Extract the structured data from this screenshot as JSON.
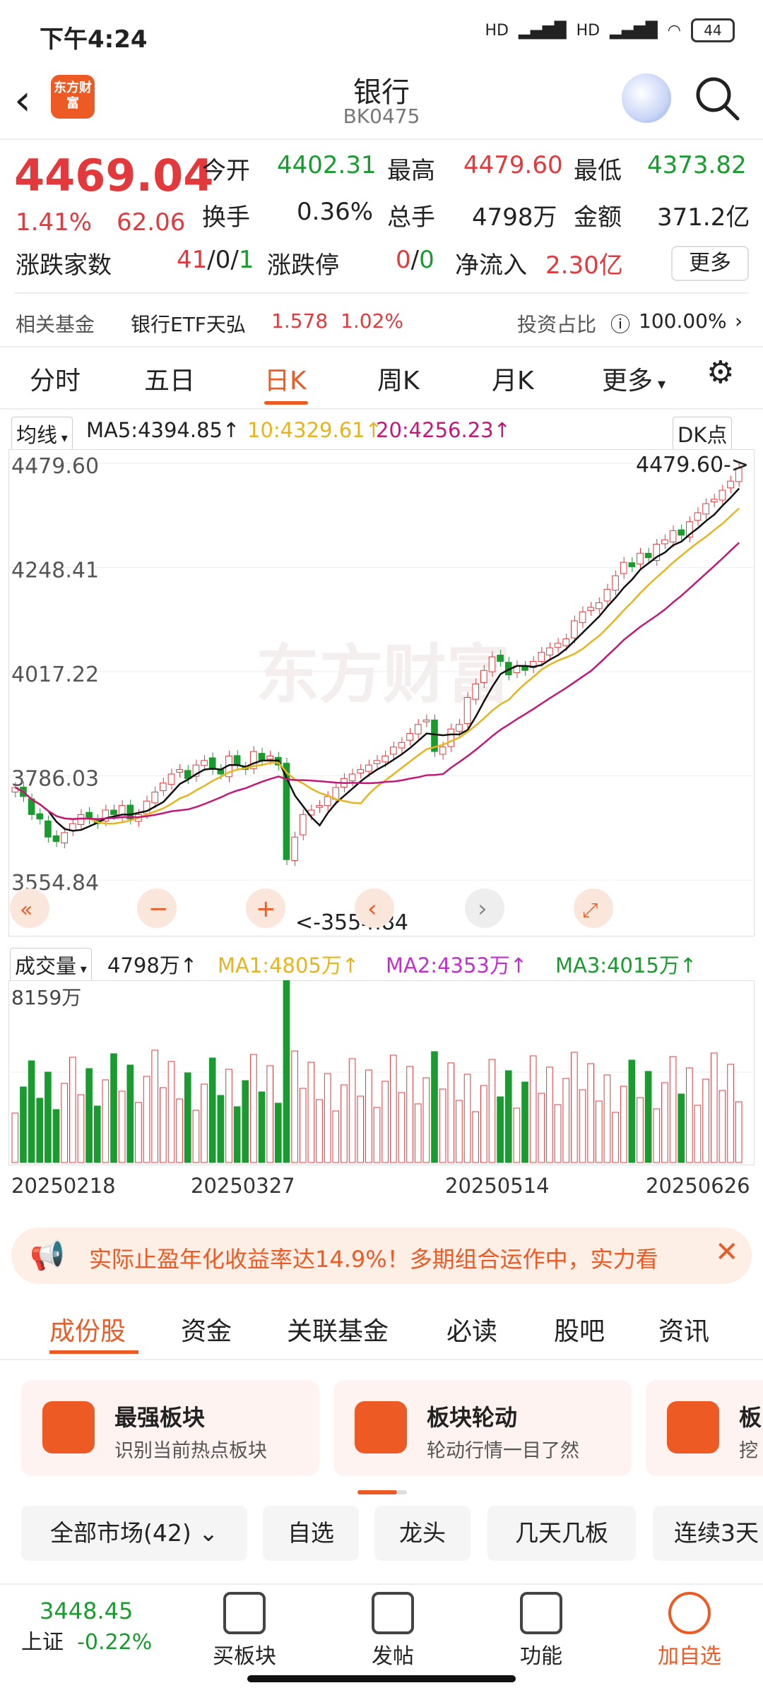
{
  "status": {
    "time": "下午4:24",
    "battery": "44",
    "net1": "HD",
    "net2": "HD"
  },
  "nav": {
    "title": "银行",
    "code": "BK0475",
    "logo": "东方财富"
  },
  "quote": {
    "price": "4469.04",
    "pct": "1.41%",
    "change": "62.06",
    "open_label": "今开",
    "open": "4402.31",
    "high_label": "最高",
    "high": "4479.60",
    "low_label": "最低",
    "low": "4373.82",
    "turnover_label": "换手",
    "turnover": "0.36%",
    "volume_label": "总手",
    "volume": "4798万",
    "amount_label": "金额",
    "amount": "371.2亿",
    "updown_label": "涨跌家数",
    "up": "41",
    "flat": "0",
    "down": "1",
    "limit_label": "涨跌停",
    "limit_up": "0",
    "limit_down": "0",
    "inflow_label": "净流入",
    "inflow": "2.30亿",
    "more": "更多"
  },
  "fund": {
    "label": "相关基金",
    "name": "银行ETF天弘",
    "nav": "1.578",
    "pct": "1.02%",
    "ratio_label": "投资占比",
    "ratio": "100.00%"
  },
  "tabs": [
    "分时",
    "五日",
    "日K",
    "周K",
    "月K",
    "更多"
  ],
  "ma": {
    "select": "均线",
    "ma5": "MA5:4394.85",
    "ma10": "10:4329.61",
    "ma20": "20:4256.23",
    "dk": "DK点"
  },
  "vol": {
    "select": "成交量",
    "value": "4798万",
    "ma1": "MA1:4805万",
    "ma2": "MA2:4353万",
    "ma3": "MA3:4015万",
    "max": "8159万"
  },
  "dates": [
    "20250218",
    "20250327",
    "20250514",
    "20250626"
  ],
  "banner": "实际止盈年化收益率达14.9%！多期组合运作中，实力看",
  "subtabs": [
    "成份股",
    "资金",
    "关联基金",
    "必读",
    "股吧",
    "资讯"
  ],
  "cards": [
    {
      "title": "最强板块",
      "sub": "识别当前热点板块"
    },
    {
      "title": "板块轮动",
      "sub": "轮动行情一目了然"
    },
    {
      "title": "板",
      "sub": "挖"
    }
  ],
  "filters": [
    "全部市场(42)",
    "自选",
    "龙头",
    "几天几板",
    "连续3天"
  ],
  "bottom": {
    "index_value": "3448.45",
    "index_name": "上证",
    "index_pct": "-0.22%",
    "items": [
      "买板块",
      "发帖",
      "功能",
      "加自选"
    ]
  },
  "chart_data": {
    "type": "candlestick",
    "y_ticks": [
      "4479.60",
      "4248.41",
      "4017.22",
      "3786.03",
      "3554.84"
    ],
    "ylim": [
      3554.84,
      4479.6
    ],
    "high_marker": "4479.60->",
    "low_marker": "<-3554.84",
    "candles_close": [
      3760,
      3740,
      3700,
      3690,
      3650,
      3640,
      3660,
      3680,
      3700,
      3690,
      3680,
      3710,
      3700,
      3720,
      3690,
      3700,
      3730,
      3750,
      3770,
      3790,
      3800,
      3780,
      3810,
      3820,
      3800,
      3790,
      3830,
      3810,
      3800,
      3840,
      3820,
      3830,
      3810,
      3600,
      3650,
      3700,
      3710,
      3720,
      3740,
      3760,
      3780,
      3790,
      3800,
      3810,
      3820,
      3830,
      3850,
      3860,
      3880,
      3900,
      3910,
      3840,
      3850,
      3890,
      3900,
      3960,
      3990,
      4020,
      4050,
      4040,
      4010,
      4030,
      4020,
      4040,
      4060,
      4070,
      4080,
      4090,
      4130,
      4150,
      4160,
      4170,
      4200,
      4230,
      4260,
      4250,
      4280,
      4270,
      4300,
      4310,
      4330,
      4320,
      4350,
      4370,
      4390,
      4400,
      4420,
      4440,
      4469
    ]
  }
}
